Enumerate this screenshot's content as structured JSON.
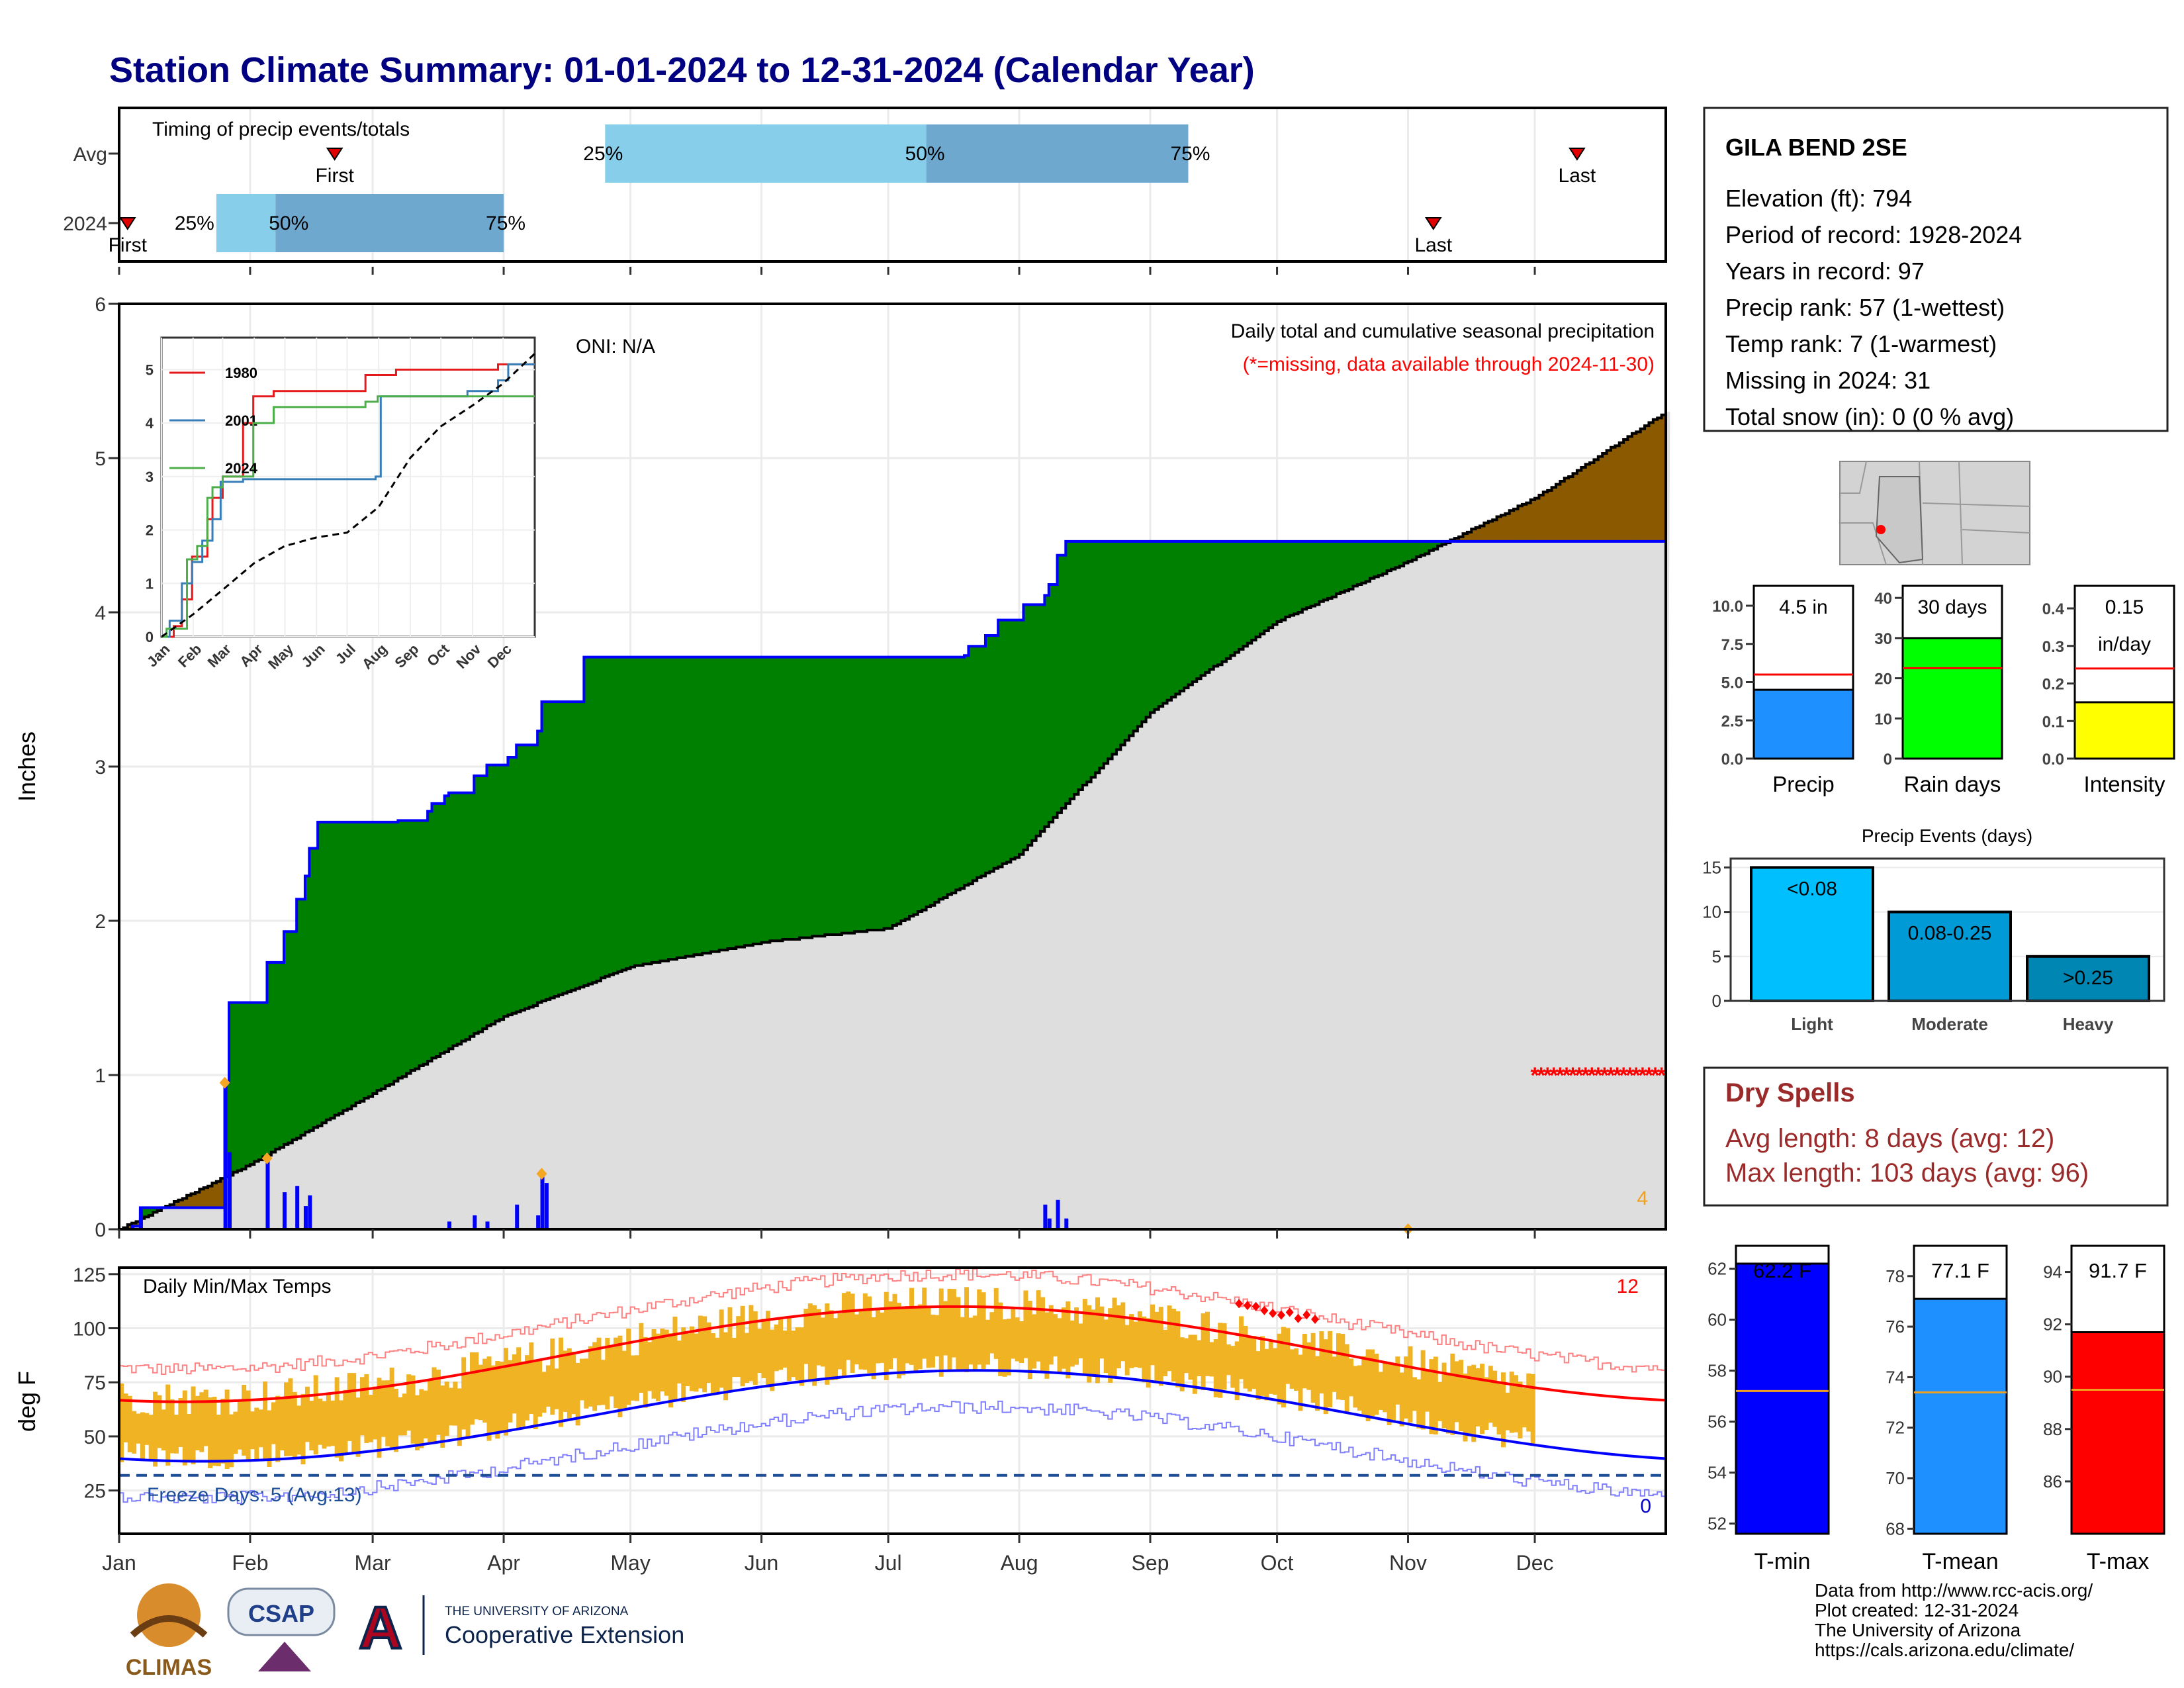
{
  "title": "Station Climate Summary: 01-01-2024 to 12-31-2024 (Calendar Year)",
  "colors": {
    "title": "#000080",
    "green": "#008000",
    "brown": "#8b5a00",
    "normal_fill": "#dedede",
    "blue_line": "#0000ff",
    "orange": "#f0b323",
    "red": "#ff0000",
    "dry_spell": "#9b2a2a"
  },
  "timing": {
    "title": "Timing of precip events/totals",
    "rows": [
      "Avg",
      "2024"
    ],
    "avg": {
      "pct_labels": [
        "25%",
        "50%",
        "75%"
      ],
      "first_label": "First",
      "last_label": "Last",
      "first_date": "2024-02-21",
      "last_date": "2024-12-11",
      "p25_date": "2024-04-25",
      "p50_date": "2024-07-10",
      "p75_date": "2024-09-10"
    },
    "y2024": {
      "pct_labels": [
        "25%",
        "50%",
        "75%"
      ],
      "first_label": "First",
      "last_label": "Last",
      "first_date": "2024-01-03",
      "last_date": "2024-11-07",
      "p25_date": "2024-01-24",
      "p50_date": "2024-02-07",
      "p75_date": "2024-04-01"
    }
  },
  "precip": {
    "ylabel": "Inches",
    "oni": "ONI: N/A",
    "note1": "Daily total and cumulative seasonal precipitation",
    "note2": "(*=missing, data available through 2024-11-30)",
    "count_label": "4",
    "ylim": [
      0,
      6
    ],
    "yticks": [
      "0",
      "1",
      "2",
      "3",
      "4",
      "5",
      "6"
    ]
  },
  "inset": {
    "years": [
      "1980",
      "2001",
      "2024"
    ],
    "yticks": [
      "0",
      "1",
      "2",
      "3",
      "4",
      "5"
    ],
    "months": [
      "Jan",
      "Feb",
      "Mar",
      "Apr",
      "May",
      "Jun",
      "Jul",
      "Aug",
      "Sep",
      "Oct",
      "Nov",
      "Dec"
    ]
  },
  "temps": {
    "ylabel": "deg F",
    "title": "Daily Min/Max Temps",
    "freeze": "Freeze Days: 5 (Avg:13)",
    "count_hot": "12",
    "count_cold": "0",
    "yticks": [
      "25",
      "50",
      "75",
      "100",
      "125"
    ],
    "ylim": [
      5,
      128
    ]
  },
  "months": [
    "Jan",
    "Feb",
    "Mar",
    "Apr",
    "May",
    "Jun",
    "Jul",
    "Aug",
    "Sep",
    "Oct",
    "Nov",
    "Dec"
  ],
  "station": {
    "name": "GILA BEND 2SE",
    "lines": [
      "Elevation (ft): 794",
      "Period of record: 1928-2024",
      "Years in record: 97",
      "Precip rank: 57 (1-wettest)",
      "Temp rank: 7 (1-warmest)",
      "Missing in 2024: 31",
      "Total snow (in): 0 (0 % avg)"
    ]
  },
  "mini_bars": [
    {
      "label": "Precip",
      "value_label": "4.5 in",
      "value": 4.5,
      "avg": 5.5,
      "yticks": [
        "0.0",
        "2.5",
        "5.0",
        "7.5",
        "10.0"
      ],
      "ymax": 11.3,
      "tick_step": 2.5,
      "color": "#1e90ff"
    },
    {
      "label": "Rain days",
      "value_label": "30 days",
      "value": 30,
      "avg": 22.5,
      "yticks": [
        "0",
        "10",
        "20",
        "30",
        "40"
      ],
      "ymax": 43,
      "tick_step": 10,
      "color": "#00ff00"
    },
    {
      "label": "Intensity",
      "value_label": "0.15\nin/day",
      "value": 0.15,
      "avg": 0.24,
      "yticks": [
        "0.0",
        "0.1",
        "0.2",
        "0.3",
        "0.4"
      ],
      "ymax": 0.46,
      "tick_step": 0.1,
      "color": "#ffff00"
    }
  ],
  "events": {
    "title": "Precip Events (days)",
    "categories": [
      "Light",
      "Moderate",
      "Heavy"
    ],
    "bar_labels": [
      "<0.08",
      "0.08-0.25",
      ">0.25"
    ],
    "values": [
      15,
      10,
      5
    ],
    "colors": [
      "#00bfff",
      "#009ad6",
      "#0086b3"
    ],
    "yticks": [
      "0",
      "5",
      "10",
      "15"
    ]
  },
  "dry_spells": {
    "title": "Dry Spells",
    "lines": [
      "Avg length: 8 days (avg: 12)",
      "Max length: 103 days (avg: 96)"
    ]
  },
  "temp_bars": [
    {
      "label": "T-min",
      "value_label": "62.2 F",
      "value": 62.2,
      "avg": 57.2,
      "yticks": [
        "52",
        "54",
        "56",
        "58",
        "60",
        "62"
      ],
      "ymin": 51.6,
      "ymax": 62.9,
      "color": "#0000ff"
    },
    {
      "label": "T-mean",
      "value_label": "77.1 F",
      "value": 77.1,
      "avg": 73.4,
      "yticks": [
        "68",
        "70",
        "72",
        "74",
        "76",
        "78"
      ],
      "ymin": 67.8,
      "ymax": 79.2,
      "color": "#1e90ff"
    },
    {
      "label": "T-max",
      "value_label": "91.7 F",
      "value": 91.7,
      "avg": 89.5,
      "yticks": [
        "86",
        "88",
        "90",
        "92",
        "94"
      ],
      "ymin": 84.0,
      "ymax": 95.0,
      "color": "#ff0000"
    }
  ],
  "footer": {
    "lines": [
      "Data from http://www.rcc-acis.org/",
      "Plot created: 12-31-2024",
      "The University of Arizona",
      "https://cals.arizona.edu/climate/"
    ],
    "logo_climas": "CLIMAS",
    "logo_csap": "CSAP",
    "logo_ua_small": "THE UNIVERSITY OF ARIZONA",
    "logo_ua_big": "Cooperative Extension",
    "logo_ua_letter": "A"
  },
  "chart_data": [
    {
      "type": "area",
      "title": "Daily total and cumulative seasonal precipitation",
      "ylabel": "Inches",
      "ylim": [
        0,
        6
      ],
      "cumulative_2024": [
        [
          0,
          0
        ],
        [
          3,
          0.02
        ],
        [
          5,
          0.14
        ],
        [
          24,
          0.14
        ],
        [
          25,
          0.95
        ],
        [
          26,
          1.47
        ],
        [
          34,
          1.47
        ],
        [
          35,
          1.73
        ],
        [
          39,
          1.93
        ],
        [
          42,
          2.14
        ],
        [
          44,
          2.29
        ],
        [
          45,
          2.47
        ],
        [
          47,
          2.64
        ],
        [
          66,
          2.65
        ],
        [
          73,
          2.71
        ],
        [
          74,
          2.76
        ],
        [
          77,
          2.81
        ],
        [
          78,
          2.83
        ],
        [
          84,
          2.94
        ],
        [
          87,
          3.01
        ],
        [
          92,
          3.06
        ],
        [
          94,
          3.14
        ],
        [
          99,
          3.23
        ],
        [
          100,
          3.42
        ],
        [
          110,
          3.71
        ],
        [
          110,
          3.71
        ],
        [
          200,
          3.72
        ],
        [
          201,
          3.78
        ],
        [
          205,
          3.85
        ],
        [
          208,
          3.95
        ],
        [
          214,
          4.05
        ],
        [
          219,
          4.11
        ],
        [
          220,
          4.18
        ],
        [
          222,
          4.37
        ],
        [
          224,
          4.46
        ],
        [
          305,
          4.46
        ],
        [
          366,
          4.48
        ]
      ],
      "normal_cumulative": [
        [
          0,
          0
        ],
        [
          31,
          0.42
        ],
        [
          60,
          0.88
        ],
        [
          91,
          1.38
        ],
        [
          121,
          1.7
        ],
        [
          152,
          1.86
        ],
        [
          182,
          1.95
        ],
        [
          213,
          2.43
        ],
        [
          244,
          3.35
        ],
        [
          274,
          3.94
        ],
        [
          305,
          4.33
        ],
        [
          335,
          4.74
        ],
        [
          366,
          5.3
        ]
      ],
      "daily_bars": [
        [
          3,
          0.02
        ],
        [
          5,
          0.13
        ],
        [
          25,
          0.95
        ],
        [
          26,
          0.5
        ],
        [
          35,
          0.46
        ],
        [
          39,
          0.24
        ],
        [
          42,
          0.28
        ],
        [
          44,
          0.15
        ],
        [
          45,
          0.22
        ],
        [
          78,
          0.05
        ],
        [
          84,
          0.09
        ],
        [
          87,
          0.05
        ],
        [
          94,
          0.16
        ],
        [
          99,
          0.09
        ],
        [
          100,
          0.36
        ],
        [
          101,
          0.3
        ],
        [
          219,
          0.16
        ],
        [
          220,
          0.07
        ],
        [
          222,
          0.19
        ],
        [
          224,
          0.07
        ]
      ]
    },
    {
      "type": "line",
      "title": "Daily Min/Max Temps",
      "ylabel": "deg F",
      "series": [
        {
          "name": "T-max normal"
        },
        {
          "name": "T-min normal"
        }
      ]
    }
  ]
}
